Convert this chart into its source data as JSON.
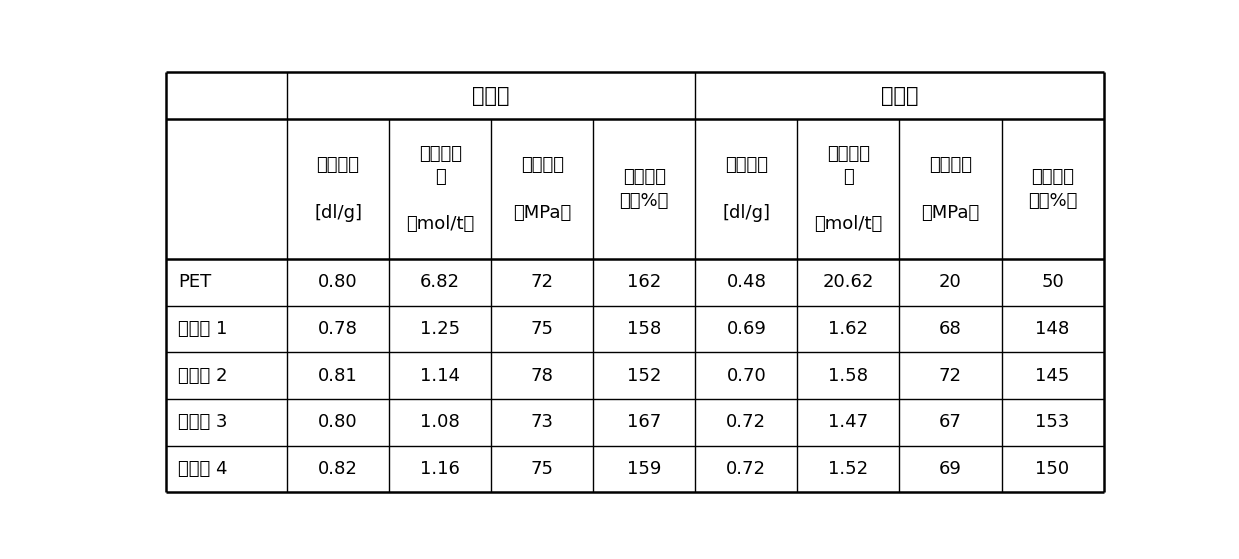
{
  "header_row1_before": "老化前",
  "header_row1_after": "老化后",
  "col_headers": [
    "",
    "特性粘度\n\n[dl/g]",
    "端羧基含\n量\n\n（mol/t）",
    "拉伸强度\n\n（MPa）",
    "断裂伸长\n率（%）",
    "特性粘度\n\n[dl/g]",
    "端羧基含\n量\n\n（mol/t）",
    "拉伸强度\n\n（MPa）",
    "断裂伸长\n率（%）"
  ],
  "rows": [
    [
      "PET",
      "0.80",
      "6.82",
      "72",
      "162",
      "0.48",
      "20.62",
      "20",
      "50"
    ],
    [
      "实施例 1",
      "0.78",
      "1.25",
      "75",
      "158",
      "0.69",
      "1.62",
      "68",
      "148"
    ],
    [
      "实施例 2",
      "0.81",
      "1.14",
      "78",
      "152",
      "0.70",
      "1.58",
      "72",
      "145"
    ],
    [
      "实施例 3",
      "0.80",
      "1.08",
      "73",
      "167",
      "0.72",
      "1.47",
      "67",
      "153"
    ],
    [
      "实施例 4",
      "0.82",
      "1.16",
      "75",
      "159",
      "0.72",
      "1.52",
      "69",
      "150"
    ]
  ],
  "background_color": "#ffffff",
  "line_color": "#000000",
  "text_color": "#000000",
  "font_size": 13,
  "header_font_size": 15,
  "col_widths_rel": [
    1.3,
    1.1,
    1.1,
    1.1,
    1.1,
    1.1,
    1.1,
    1.1,
    1.1
  ],
  "row_heights_rel": [
    1.0,
    3.0,
    1.0,
    1.0,
    1.0,
    1.0,
    1.0
  ]
}
